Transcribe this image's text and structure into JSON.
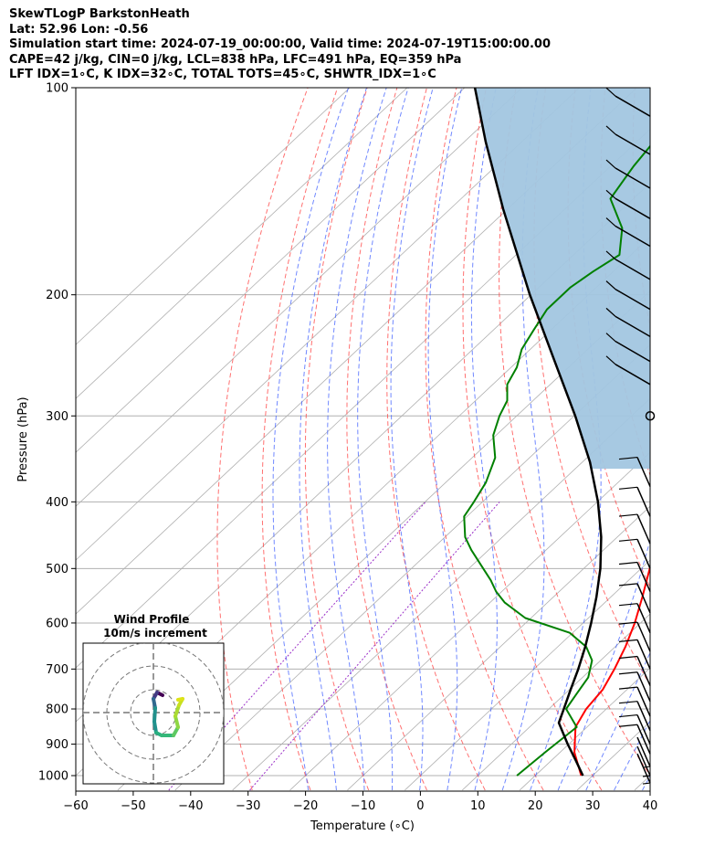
{
  "header": {
    "line1": "SkewTLogP BarkstonHeath",
    "line2": "Lat: 52.96   Lon: -0.56",
    "line3": "Simulation start time: 2024-07-19_00:00:00, Valid time: 2024-07-19T15:00:00.00",
    "line4": "CAPE=42 j/kg, CIN=0 j/kg, LCL=838 hPa, LFC=491 hPa, EQ=359 hPa",
    "line5": "LFT IDX=1∘C, K IDX=32∘C, TOTAL TOTS=45∘C, SHWTR_IDX=1∘C"
  },
  "hodograph": {
    "title1": "Wind Profile",
    "title2": "10m/s increment"
  },
  "chart_data": {
    "type": "line",
    "subtype": "skew-t log-p",
    "xlabel": "Temperature (∘C)",
    "ylabel": "Pressure (hPa)",
    "xlim": [
      -60,
      40
    ],
    "ylim": [
      1050,
      100
    ],
    "y_scale": "log",
    "x_ticks": [
      "−60",
      "−50",
      "−40",
      "−30",
      "−20",
      "−10",
      "0",
      "10",
      "20",
      "30",
      "40"
    ],
    "y_ticks": [
      "100",
      "200",
      "300",
      "400",
      "500",
      "600",
      "700",
      "800",
      "900",
      "1000"
    ],
    "grid": true,
    "colors": {
      "temperature": "#ff0000",
      "dewpoint": "#008000",
      "parcel": "#000000",
      "cape_fill": "#a2c6e0",
      "dry_adiabat": "#ff4040",
      "moist_adiabat": "#4060ff",
      "mixing_ratio": "#9b30c8",
      "isotherm_grid": "#b0b0b0"
    },
    "series": [
      {
        "key": "temperature",
        "p": [
          1000,
          925,
          850,
          800,
          750,
          700,
          650,
          600,
          550,
          500,
          450,
          400,
          360,
          330,
          300,
          270,
          250,
          230,
          210,
          200,
          185,
          175,
          165,
          155,
          145,
          135,
          125,
          115,
          108,
          104,
          100
        ],
        "t": [
          28,
          22.5,
          18.0,
          16.5,
          15.8,
          14.0,
          11.8,
          9.0,
          5.5,
          1.5,
          -3.0,
          -9.0,
          -13.0,
          -17.5,
          -22.5,
          -28.5,
          -32.0,
          -36.5,
          -41.0,
          -42.5,
          -46.0,
          -47.5,
          -49.5,
          -54.0,
          -57.5,
          -61.5,
          -66.0,
          -70.5,
          -73.5,
          -75.0,
          -77.0
        ]
      },
      {
        "key": "dewpoint",
        "p": [
          1000,
          925,
          850,
          800,
          760,
          720,
          680,
          650,
          620,
          590,
          560,
          540,
          520,
          500,
          470,
          450,
          420,
          400,
          375,
          345,
          320,
          300,
          285,
          270,
          255,
          240,
          225,
          210,
          195,
          185,
          175,
          160,
          145,
          130,
          120,
          110,
          100
        ],
        "t": [
          16.8,
          17.4,
          18.2,
          13.0,
          12.0,
          11.0,
          8.5,
          5.0,
          -0.5,
          -11.0,
          -17.5,
          -21.0,
          -24.0,
          -27.5,
          -33.0,
          -36.5,
          -40.5,
          -41.5,
          -43.0,
          -46.0,
          -50.5,
          -53.0,
          -54.5,
          -57.5,
          -59.0,
          -61.5,
          -63.0,
          -64.5,
          -64.5,
          -63.5,
          -62.0,
          -66.5,
          -74.0,
          -76.0,
          -77.0,
          -79.0,
          -82.0
        ]
      },
      {
        "key": "parcel",
        "p": [
          1000,
          950,
          900,
          838,
          800,
          750,
          700,
          650,
          600,
          550,
          500,
          450,
          400,
          350,
          300,
          250,
          200,
          150,
          120,
          100
        ],
        "t": [
          28.3,
          24.2,
          19.8,
          14.3,
          12.6,
          10.2,
          7.7,
          4.8,
          1.4,
          -2.5,
          -7.1,
          -12.8,
          -19.9,
          -28.7,
          -39.8,
          -53.5,
          -70.2,
          -90.8,
          -106.2,
          -118.2
        ]
      }
    ],
    "wind_barbs": [
      {
        "p": 1025
      },
      {
        "p": 1000
      },
      {
        "p": 970
      },
      {
        "p": 930
      },
      {
        "p": 900
      },
      {
        "p": 860
      },
      {
        "p": 820
      },
      {
        "p": 780
      },
      {
        "p": 740
      },
      {
        "p": 700
      },
      {
        "p": 660
      },
      {
        "p": 620
      },
      {
        "p": 580
      },
      {
        "p": 540
      },
      {
        "p": 500
      },
      {
        "p": 460
      },
      {
        "p": 420
      },
      {
        "p": 380
      },
      {
        "p": 300,
        "calm": true
      },
      {
        "p": 270
      },
      {
        "p": 250
      },
      {
        "p": 230
      },
      {
        "p": 210
      },
      {
        "p": 190
      },
      {
        "p": 170
      },
      {
        "p": 155
      },
      {
        "p": 140
      },
      {
        "p": 125
      },
      {
        "p": 110
      }
    ]
  }
}
